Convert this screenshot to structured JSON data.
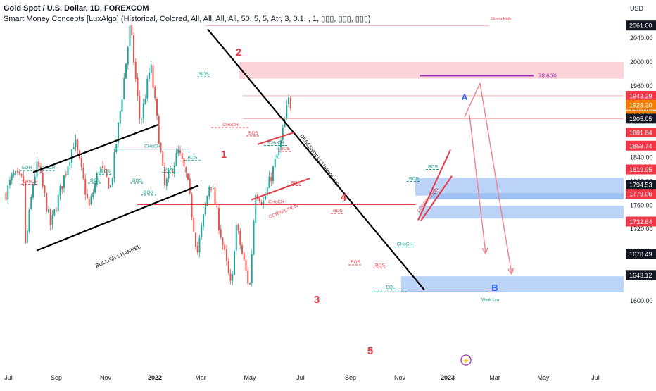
{
  "header": {
    "symbol_title": "Gold Spot / U.S. Dollar, 1D, FOREXCOM",
    "indicator_line": "Smart Money Concepts [LuxAlgo] (Historical, Colored, All, All, All, All, 50, 5, 5, Atr, 3, 0.1, , 1, ▯▯▯, ▯▯▯, ▯▯▯)",
    "currency": "USD"
  },
  "colors": {
    "up_candle": "#26a69a",
    "down_candle": "#ef5350",
    "bullish_label": "#089981",
    "bearish_label": "#f23645",
    "demand_zone": "#bbd3f7",
    "supply_zone": "#fad4d8",
    "fib_line": "#9c27b0",
    "trendline": "#000000",
    "projection_arrow": "#f23645",
    "wave_number": "#e53945",
    "wave_letter": "#2962ff",
    "current_price_bg": "#f57c00"
  },
  "chart_data": {
    "type": "candlestick",
    "title": "Gold Spot / U.S. Dollar, 1D, FOREXCOM",
    "ylabel": "USD",
    "ylim": [
      1580,
      2085
    ],
    "x_ticks": [
      "Jul",
      "Sep",
      "Nov",
      "2022",
      "Mar",
      "May",
      "Jul",
      "Sep",
      "Nov",
      "2023",
      "Mar",
      "May",
      "Jul"
    ],
    "y_ticks": [
      1600,
      1640,
      1680,
      1720,
      1760,
      1800,
      1840,
      1880,
      1920,
      1960,
      2000,
      2040
    ],
    "price_path_points": [
      [
        "2021-07-01",
        1780
      ],
      [
        "2021-07-15",
        1810
      ],
      [
        "2021-08-05",
        1800
      ],
      [
        "2021-08-09",
        1690
      ],
      [
        "2021-08-25",
        1800
      ],
      [
        "2021-09-03",
        1830
      ],
      [
        "2021-09-29",
        1725
      ],
      [
        "2021-10-20",
        1790
      ],
      [
        "2021-11-16",
        1870
      ],
      [
        "2021-12-15",
        1755
      ],
      [
        "2022-01-05",
        1825
      ],
      [
        "2022-01-28",
        1790
      ],
      [
        "2022-02-24",
        1975
      ],
      [
        "2022-03-08",
        2060
      ],
      [
        "2022-03-28",
        1895
      ],
      [
        "2022-04-18",
        1995
      ],
      [
        "2022-05-16",
        1790
      ],
      [
        "2022-06-13",
        1850
      ],
      [
        "2022-06-30",
        1805
      ],
      [
        "2022-07-21",
        1680
      ],
      [
        "2022-08-16",
        1805
      ],
      [
        "2022-09-28",
        1615
      ],
      [
        "2022-10-06",
        1730
      ],
      [
        "2022-11-03",
        1620
      ],
      [
        "2022-11-15",
        1785
      ],
      [
        "2022-12-01",
        1765
      ],
      [
        "2023-01-05",
        1865
      ],
      [
        "2023-01-20",
        1936
      ],
      [
        "2023-01-25",
        1928
      ]
    ],
    "levels": {
      "strong_high": 2061.0,
      "weak_low": 1615,
      "fib_78_60": 1977
    },
    "price_axis_labels": [
      {
        "value": "2061.00",
        "style": "black"
      },
      {
        "value": "1943.29",
        "style": "red"
      },
      {
        "value": "1928.20",
        "style": "current"
      },
      {
        "value": "12:02:48",
        "style": "current"
      },
      {
        "value": "1905.05",
        "style": "black"
      },
      {
        "value": "1881.84",
        "style": "red"
      },
      {
        "value": "1859.74",
        "style": "red"
      },
      {
        "value": "1819.95",
        "style": "red"
      },
      {
        "value": "1794.53",
        "style": "black"
      },
      {
        "value": "1779.06",
        "style": "red"
      },
      {
        "value": "1732.64",
        "style": "red"
      },
      {
        "value": "1678.49",
        "style": "black"
      },
      {
        "value": "1643.12",
        "style": "black"
      }
    ],
    "annotations": {
      "wave_1": "1",
      "wave_2": "2",
      "wave_3": "3",
      "wave_4": "4",
      "wave_5": "5",
      "wave_A": "A",
      "wave_B": "B",
      "bullish_channel": "BULLISH CHANNEL",
      "descending_trendline": "DESCENDING TRENDLINE",
      "correction_1": "CORRECTION",
      "correction_2": "CORRECTION",
      "fib_label": "78.60%",
      "strong_high": "Strong High",
      "weak_low": "Weak Low",
      "choch": "CHoCH",
      "bos": "BOS",
      "eqh": "EQH",
      "eql": "EQL"
    }
  }
}
